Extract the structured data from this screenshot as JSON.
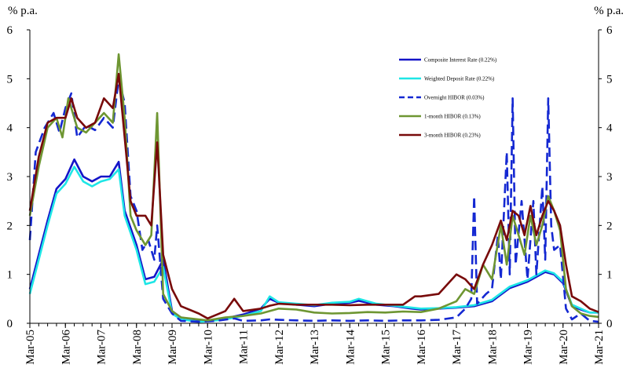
{
  "chart_data": {
    "type": "line",
    "ylabel_left": "% p.a.",
    "ylabel_right": "% p.a.",
    "ylim": [
      0,
      6
    ],
    "y_ticks": [
      0,
      1,
      2,
      3,
      4,
      5,
      6
    ],
    "x_range": [
      "2005-03",
      "2021-03"
    ],
    "x_tick_labels": [
      "Mar-05",
      "Mar-06",
      "Mar-07",
      "Mar-08",
      "Mar-09",
      "Mar-10",
      "Mar-11",
      "Mar-12",
      "Mar-13",
      "Mar-14",
      "Mar-15",
      "Mar-16",
      "Mar-17",
      "Mar-18",
      "Mar-19",
      "Mar-20",
      "Mar-21"
    ],
    "grid": false,
    "legend_position": "top-right",
    "series": [
      {
        "name": "Composite Interest Rate (0.22%)",
        "color": "#1414c8",
        "dash": "solid",
        "points": [
          [
            "2005-03",
            0.7
          ],
          [
            "2005-06",
            1.4
          ],
          [
            "2005-09",
            2.1
          ],
          [
            "2005-12",
            2.75
          ],
          [
            "2006-03",
            2.95
          ],
          [
            "2006-06",
            3.35
          ],
          [
            "2006-09",
            3.0
          ],
          [
            "2006-12",
            2.9
          ],
          [
            "2007-03",
            3.0
          ],
          [
            "2007-06",
            3.0
          ],
          [
            "2007-09",
            3.3
          ],
          [
            "2007-11",
            2.3
          ],
          [
            "2008-03",
            1.6
          ],
          [
            "2008-06",
            0.9
          ],
          [
            "2008-09",
            0.95
          ],
          [
            "2008-12",
            1.3
          ],
          [
            "2009-03",
            0.25
          ],
          [
            "2009-06",
            0.12
          ],
          [
            "2009-12",
            0.05
          ],
          [
            "2010-03",
            0.06
          ],
          [
            "2010-09",
            0.1
          ],
          [
            "2011-03",
            0.18
          ],
          [
            "2011-09",
            0.3
          ],
          [
            "2011-12",
            0.5
          ],
          [
            "2012-03",
            0.42
          ],
          [
            "2012-09",
            0.38
          ],
          [
            "2013-03",
            0.35
          ],
          [
            "2013-09",
            0.4
          ],
          [
            "2014-03",
            0.42
          ],
          [
            "2014-06",
            0.46
          ],
          [
            "2014-12",
            0.38
          ],
          [
            "2015-06",
            0.35
          ],
          [
            "2015-12",
            0.3
          ],
          [
            "2016-03",
            0.28
          ],
          [
            "2016-09",
            0.3
          ],
          [
            "2017-03",
            0.32
          ],
          [
            "2017-09",
            0.35
          ],
          [
            "2018-03",
            0.45
          ],
          [
            "2018-09",
            0.72
          ],
          [
            "2019-03",
            0.85
          ],
          [
            "2019-09",
            1.05
          ],
          [
            "2019-12",
            1.0
          ],
          [
            "2020-03",
            0.82
          ],
          [
            "2020-06",
            0.35
          ],
          [
            "2020-09",
            0.28
          ],
          [
            "2020-12",
            0.22
          ],
          [
            "2021-03",
            0.22
          ]
        ]
      },
      {
        "name": "Weighted Deposit Rate (0.22%)",
        "color": "#1ee6e6",
        "dash": "solid",
        "points": [
          [
            "2005-03",
            0.6
          ],
          [
            "2005-06",
            1.3
          ],
          [
            "2005-09",
            2.0
          ],
          [
            "2005-12",
            2.65
          ],
          [
            "2006-03",
            2.85
          ],
          [
            "2006-06",
            3.2
          ],
          [
            "2006-09",
            2.9
          ],
          [
            "2006-12",
            2.8
          ],
          [
            "2007-03",
            2.9
          ],
          [
            "2007-06",
            2.95
          ],
          [
            "2007-09",
            3.15
          ],
          [
            "2007-11",
            2.2
          ],
          [
            "2008-03",
            1.5
          ],
          [
            "2008-06",
            0.8
          ],
          [
            "2008-09",
            0.85
          ],
          [
            "2008-12",
            1.15
          ],
          [
            "2009-03",
            0.2
          ],
          [
            "2009-06",
            0.08
          ],
          [
            "2009-12",
            0.03
          ],
          [
            "2010-03",
            0.04
          ],
          [
            "2010-09",
            0.08
          ],
          [
            "2011-03",
            0.15
          ],
          [
            "2011-09",
            0.25
          ],
          [
            "2011-12",
            0.55
          ],
          [
            "2012-03",
            0.43
          ],
          [
            "2012-09",
            0.4
          ],
          [
            "2013-03",
            0.37
          ],
          [
            "2013-09",
            0.42
          ],
          [
            "2014-03",
            0.44
          ],
          [
            "2014-06",
            0.5
          ],
          [
            "2014-12",
            0.4
          ],
          [
            "2015-06",
            0.36
          ],
          [
            "2015-12",
            0.32
          ],
          [
            "2016-03",
            0.3
          ],
          [
            "2016-09",
            0.31
          ],
          [
            "2017-03",
            0.33
          ],
          [
            "2017-09",
            0.37
          ],
          [
            "2018-03",
            0.48
          ],
          [
            "2018-09",
            0.75
          ],
          [
            "2019-03",
            0.88
          ],
          [
            "2019-09",
            1.08
          ],
          [
            "2019-12",
            1.02
          ],
          [
            "2020-03",
            0.85
          ],
          [
            "2020-06",
            0.38
          ],
          [
            "2020-09",
            0.3
          ],
          [
            "2020-12",
            0.22
          ],
          [
            "2021-03",
            0.22
          ]
        ]
      },
      {
        "name": "Overnight HIBOR (0.03%)",
        "color": "#1428d2",
        "dash": "dashed",
        "points": [
          [
            "2005-03",
            1.7
          ],
          [
            "2005-05",
            3.5
          ],
          [
            "2005-08",
            4.0
          ],
          [
            "2005-11",
            4.3
          ],
          [
            "2006-01",
            3.9
          ],
          [
            "2006-03",
            4.4
          ],
          [
            "2006-05",
            4.7
          ],
          [
            "2006-07",
            3.8
          ],
          [
            "2006-10",
            4.05
          ],
          [
            "2007-01",
            3.95
          ],
          [
            "2007-04",
            4.2
          ],
          [
            "2007-07",
            4.0
          ],
          [
            "2007-09",
            5.0
          ],
          [
            "2007-11",
            4.5
          ],
          [
            "2008-01",
            2.6
          ],
          [
            "2008-03",
            2.3
          ],
          [
            "2008-05",
            1.5
          ],
          [
            "2008-07",
            1.7
          ],
          [
            "2008-09",
            1.3
          ],
          [
            "2008-10",
            2.0
          ],
          [
            "2008-12",
            0.5
          ],
          [
            "2009-03",
            0.2
          ],
          [
            "2009-06",
            0.05
          ],
          [
            "2009-12",
            0.03
          ],
          [
            "2010-06",
            0.05
          ],
          [
            "2010-12",
            0.1
          ],
          [
            "2011-03",
            0.05
          ],
          [
            "2011-09",
            0.06
          ],
          [
            "2011-12",
            0.08
          ],
          [
            "2012-03",
            0.07
          ],
          [
            "2012-09",
            0.06
          ],
          [
            "2013-03",
            0.05
          ],
          [
            "2013-09",
            0.06
          ],
          [
            "2014-03",
            0.05
          ],
          [
            "2014-09",
            0.06
          ],
          [
            "2015-03",
            0.05
          ],
          [
            "2015-09",
            0.06
          ],
          [
            "2016-03",
            0.06
          ],
          [
            "2016-09",
            0.07
          ],
          [
            "2017-03",
            0.12
          ],
          [
            "2017-06",
            0.3
          ],
          [
            "2017-08",
            0.5
          ],
          [
            "2017-09",
            2.6
          ],
          [
            "2017-10",
            0.4
          ],
          [
            "2018-01",
            0.6
          ],
          [
            "2018-03",
            0.7
          ],
          [
            "2018-05",
            1.8
          ],
          [
            "2018-06",
            0.9
          ],
          [
            "2018-08",
            3.5
          ],
          [
            "2018-09",
            1.0
          ],
          [
            "2018-10",
            4.6
          ],
          [
            "2018-11",
            1.2
          ],
          [
            "2019-01",
            2.5
          ],
          [
            "2019-03",
            0.9
          ],
          [
            "2019-05",
            2.5
          ],
          [
            "2019-06",
            1.0
          ],
          [
            "2019-08",
            2.8
          ],
          [
            "2019-09",
            1.3
          ],
          [
            "2019-10",
            4.6
          ],
          [
            "2019-11",
            2.0
          ],
          [
            "2019-12",
            1.5
          ],
          [
            "2020-02",
            1.6
          ],
          [
            "2020-04",
            0.3
          ],
          [
            "2020-06",
            0.08
          ],
          [
            "2020-09",
            0.2
          ],
          [
            "2020-12",
            0.05
          ],
          [
            "2021-03",
            0.03
          ]
        ]
      },
      {
        "name": "1-month HIBOR (0.13%)",
        "color": "#6e9632",
        "dash": "solid",
        "points": [
          [
            "2005-03",
            2.2
          ],
          [
            "2005-06",
            3.2
          ],
          [
            "2005-09",
            4.0
          ],
          [
            "2005-12",
            4.2
          ],
          [
            "2006-02",
            3.8
          ],
          [
            "2006-04",
            4.6
          ],
          [
            "2006-07",
            4.0
          ],
          [
            "2006-10",
            3.9
          ],
          [
            "2007-01",
            4.1
          ],
          [
            "2007-04",
            4.3
          ],
          [
            "2007-07",
            4.1
          ],
          [
            "2007-09",
            5.5
          ],
          [
            "2007-11",
            4.2
          ],
          [
            "2008-01",
            2.2
          ],
          [
            "2008-03",
            1.9
          ],
          [
            "2008-06",
            1.6
          ],
          [
            "2008-08",
            1.8
          ],
          [
            "2008-10",
            4.3
          ],
          [
            "2008-12",
            0.6
          ],
          [
            "2009-03",
            0.25
          ],
          [
            "2009-06",
            0.12
          ],
          [
            "2010-03",
            0.06
          ],
          [
            "2010-09",
            0.12
          ],
          [
            "2011-03",
            0.15
          ],
          [
            "2011-09",
            0.2
          ],
          [
            "2012-03",
            0.3
          ],
          [
            "2012-09",
            0.28
          ],
          [
            "2013-03",
            0.22
          ],
          [
            "2013-09",
            0.2
          ],
          [
            "2014-03",
            0.21
          ],
          [
            "2014-09",
            0.23
          ],
          [
            "2015-03",
            0.22
          ],
          [
            "2015-09",
            0.24
          ],
          [
            "2016-03",
            0.23
          ],
          [
            "2016-09",
            0.3
          ],
          [
            "2017-03",
            0.45
          ],
          [
            "2017-06",
            0.7
          ],
          [
            "2017-09",
            0.6
          ],
          [
            "2017-12",
            1.2
          ],
          [
            "2018-03",
            0.9
          ],
          [
            "2018-06",
            2.0
          ],
          [
            "2018-08",
            1.2
          ],
          [
            "2018-10",
            2.2
          ],
          [
            "2018-12",
            1.8
          ],
          [
            "2019-02",
            1.4
          ],
          [
            "2019-04",
            2.2
          ],
          [
            "2019-06",
            1.6
          ],
          [
            "2019-08",
            2.0
          ],
          [
            "2019-10",
            2.6
          ],
          [
            "2019-12",
            2.3
          ],
          [
            "2020-02",
            1.9
          ],
          [
            "2020-04",
            0.7
          ],
          [
            "2020-06",
            0.35
          ],
          [
            "2020-09",
            0.2
          ],
          [
            "2020-12",
            0.15
          ],
          [
            "2021-03",
            0.13
          ]
        ]
      },
      {
        "name": "3-month HIBOR (0.23%)",
        "color": "#780a0a",
        "dash": "solid",
        "points": [
          [
            "2005-03",
            2.3
          ],
          [
            "2005-06",
            3.4
          ],
          [
            "2005-09",
            4.1
          ],
          [
            "2005-12",
            4.2
          ],
          [
            "2006-03",
            4.2
          ],
          [
            "2006-05",
            4.6
          ],
          [
            "2006-07",
            4.2
          ],
          [
            "2006-10",
            4.0
          ],
          [
            "2007-01",
            4.1
          ],
          [
            "2007-04",
            4.6
          ],
          [
            "2007-07",
            4.4
          ],
          [
            "2007-09",
            5.1
          ],
          [
            "2007-11",
            3.8
          ],
          [
            "2008-01",
            2.5
          ],
          [
            "2008-03",
            2.2
          ],
          [
            "2008-06",
            2.2
          ],
          [
            "2008-08",
            2.0
          ],
          [
            "2008-10",
            3.7
          ],
          [
            "2008-12",
            1.4
          ],
          [
            "2009-03",
            0.7
          ],
          [
            "2009-06",
            0.35
          ],
          [
            "2009-12",
            0.2
          ],
          [
            "2010-03",
            0.1
          ],
          [
            "2010-09",
            0.25
          ],
          [
            "2010-12",
            0.5
          ],
          [
            "2011-03",
            0.25
          ],
          [
            "2011-09",
            0.3
          ],
          [
            "2011-12",
            0.36
          ],
          [
            "2012-03",
            0.4
          ],
          [
            "2012-09",
            0.38
          ],
          [
            "2013-03",
            0.38
          ],
          [
            "2013-09",
            0.38
          ],
          [
            "2014-03",
            0.37
          ],
          [
            "2014-09",
            0.38
          ],
          [
            "2015-03",
            0.38
          ],
          [
            "2015-09",
            0.38
          ],
          [
            "2016-01",
            0.55
          ],
          [
            "2016-03",
            0.55
          ],
          [
            "2016-09",
            0.6
          ],
          [
            "2017-03",
            1.0
          ],
          [
            "2017-06",
            0.9
          ],
          [
            "2017-09",
            0.7
          ],
          [
            "2017-12",
            1.2
          ],
          [
            "2018-03",
            1.6
          ],
          [
            "2018-06",
            2.1
          ],
          [
            "2018-08",
            1.7
          ],
          [
            "2018-10",
            2.3
          ],
          [
            "2018-12",
            2.2
          ],
          [
            "2019-02",
            1.8
          ],
          [
            "2019-04",
            2.4
          ],
          [
            "2019-06",
            1.8
          ],
          [
            "2019-08",
            2.2
          ],
          [
            "2019-10",
            2.5
          ],
          [
            "2019-12",
            2.3
          ],
          [
            "2020-02",
            2.0
          ],
          [
            "2020-04",
            1.2
          ],
          [
            "2020-06",
            0.55
          ],
          [
            "2020-09",
            0.45
          ],
          [
            "2020-12",
            0.3
          ],
          [
            "2021-03",
            0.23
          ]
        ]
      }
    ]
  }
}
